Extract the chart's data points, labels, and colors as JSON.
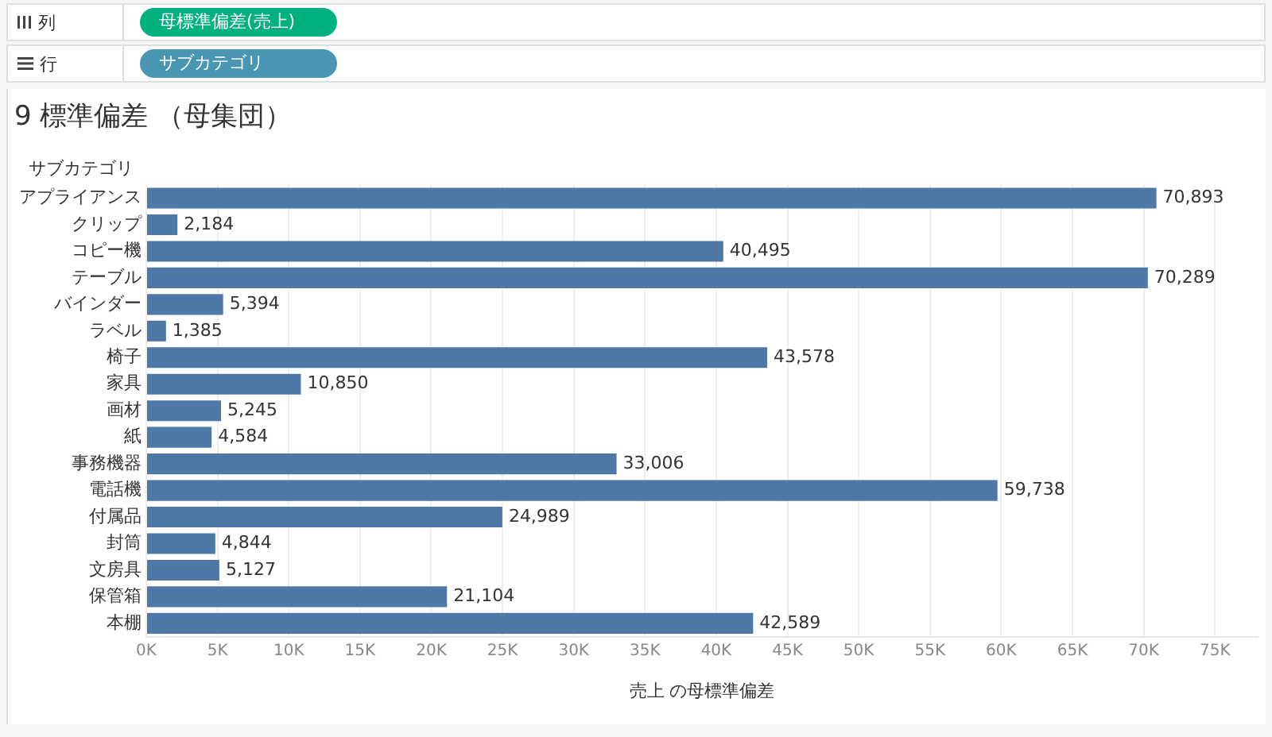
{
  "chart_data": {
    "type": "bar",
    "orientation": "horizontal",
    "title": "9 標準偏差 （母集団）",
    "xlabel": "売上 の母標準偏差",
    "ylabel": "サブカテゴリ",
    "annotations": [
      "列",
      "母標準偏差(売上)",
      "行",
      "サブカテゴリ"
    ],
    "categories": [
      "アプライアンス",
      "クリップ",
      "コピー機",
      "テーブル",
      "バインダー",
      "ラベル",
      "椅子",
      "家具",
      "画材",
      "紙",
      "事務機器",
      "電話機",
      "付属品",
      "封筒",
      "文房具",
      "保管箱",
      "本棚"
    ],
    "values": [
      70893,
      2184,
      40495,
      70289,
      5394,
      1385,
      43578,
      10850,
      5245,
      4584,
      33006,
      59738,
      24989,
      4844,
      5127,
      21104,
      42589
    ],
    "value_labels": [
      "70,893",
      "2,184",
      "40,495",
      "70,289",
      "5,394",
      "1,385",
      "43,578",
      "10,850",
      "5,245",
      "4,584",
      "33,006",
      "59,738",
      "24,989",
      "4,844",
      "5,127",
      "21,104",
      "42,589"
    ],
    "color": "#4e79a7",
    "xlim": [
      0,
      78000
    ],
    "xticks": [
      {
        "value": 0,
        "label": "0K"
      },
      {
        "value": 5000,
        "label": "5K"
      },
      {
        "value": 10000,
        "label": "10K"
      },
      {
        "value": 15000,
        "label": "15K"
      },
      {
        "value": 20000,
        "label": "20K"
      },
      {
        "value": 25000,
        "label": "25K"
      },
      {
        "value": 30000,
        "label": "30K"
      },
      {
        "value": 35000,
        "label": "35K"
      },
      {
        "value": 40000,
        "label": "40K"
      },
      {
        "value": 45000,
        "label": "45K"
      },
      {
        "value": 50000,
        "label": "50K"
      },
      {
        "value": 55000,
        "label": "55K"
      },
      {
        "value": 60000,
        "label": "60K"
      },
      {
        "value": 65000,
        "label": "65K"
      },
      {
        "value": 70000,
        "label": "70K"
      },
      {
        "value": 75000,
        "label": "75K"
      }
    ],
    "grid": "x",
    "legend": false
  }
}
